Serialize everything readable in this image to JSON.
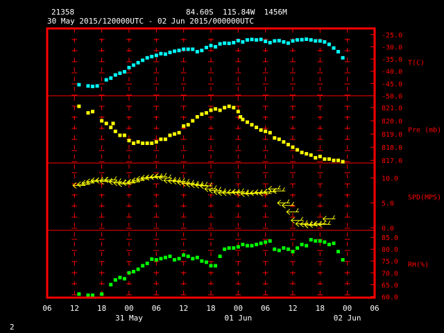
{
  "header": {
    "station_id": "21358",
    "location": "84.60S  115.84W  1456M",
    "time_range": "30 May 2015/120000UTC - 02 Jun 2015/000000UTC"
  },
  "footer": {
    "page_number": "2"
  },
  "chart_data": {
    "type": "scatter",
    "x_unit": "hours since 30 May 2015 00 UTC",
    "x_axis": {
      "range": [
        6,
        78
      ],
      "tick_labels": [
        "06",
        "12",
        "18",
        "00",
        "06",
        "12",
        "18",
        "00",
        "06",
        "12",
        "18",
        "00",
        "06"
      ],
      "date_labels": [
        {
          "label": "31 May",
          "hour": 24
        },
        {
          "label": "01 Jun",
          "hour": 48
        },
        {
          "label": "02 Jun",
          "hour": 72
        }
      ]
    },
    "colors": {
      "frame": "#ff0000",
      "grid": "#ff0000",
      "panel_label": "#ff0000",
      "tick_label": "#ff0000",
      "axis_label": "#ffffff",
      "temperature": "#00ffff",
      "pressure": "#ffff00",
      "wind": "#ffff00",
      "humidity": "#00ff00"
    },
    "panels": [
      {
        "key": "temperature",
        "label": "T(C)",
        "range": [
          -50,
          -22.5
        ],
        "ticks": [
          -25,
          -30,
          -35,
          -40,
          -45,
          -50
        ],
        "tick_labels": [
          "-25.0",
          "-30.0",
          "-35.0",
          "-40.0",
          "-45.0",
          "-50.0"
        ],
        "series": {
          "name": "T(C)",
          "x": [
            13,
            15,
            16,
            17,
            19,
            20,
            21,
            22,
            23,
            24,
            25,
            26,
            27,
            28,
            29,
            30,
            31,
            32,
            33,
            34,
            35,
            36,
            37,
            38,
            39,
            40,
            41,
            42,
            43,
            44,
            45,
            46,
            47,
            48,
            49,
            50,
            51,
            52,
            53,
            54,
            55,
            56,
            57,
            58,
            59,
            60,
            61,
            62,
            63,
            64,
            65,
            66,
            67,
            68,
            69,
            70,
            71
          ],
          "y": [
            -45.5,
            -46,
            -46.2,
            -46,
            -43.5,
            -42.8,
            -41.5,
            -40.8,
            -40.2,
            -38.5,
            -37.5,
            -36.5,
            -35.5,
            -34.5,
            -34,
            -33.5,
            -32.8,
            -33,
            -32.3,
            -31.8,
            -31.5,
            -31,
            -31,
            -31,
            -32,
            -31.5,
            -30.3,
            -29.5,
            -30,
            -28.8,
            -28.5,
            -28.6,
            -28.3,
            -27.5,
            -28,
            -27.2,
            -27,
            -27.2,
            -27,
            -27.8,
            -28.3,
            -27.6,
            -27.5,
            -28,
            -28.5,
            -27.6,
            -27.2,
            -27.1,
            -26.9,
            -27.2,
            -27.6,
            -27.6,
            -28,
            -29,
            -30.5,
            -32,
            -34.5
          ]
        }
      },
      {
        "key": "pressure",
        "label": "Pre (mb)",
        "range": [
          816.8,
          821.9
        ],
        "ticks": [
          817,
          818,
          819,
          820,
          821
        ],
        "tick_labels": [
          "817.0",
          "818.0",
          "819.0",
          "820.0",
          "821.0"
        ],
        "series": {
          "name": "Pre (mb)",
          "x": [
            13,
            15,
            16,
            18,
            19,
            20,
            20.5,
            21,
            22,
            23,
            24,
            25,
            26,
            27,
            28,
            29,
            30,
            31,
            32,
            33,
            34,
            35,
            36,
            37,
            38,
            39,
            40,
            41,
            42,
            43,
            44,
            45,
            46,
            47,
            48,
            48.5,
            49,
            50,
            51,
            52,
            53,
            54,
            55,
            56,
            57,
            58,
            59,
            60,
            61,
            62,
            63,
            64,
            65,
            66,
            67,
            68,
            69,
            70,
            71
          ],
          "y": [
            821.1,
            820.6,
            820.7,
            820,
            819.8,
            819.5,
            819.8,
            819.2,
            818.9,
            818.9,
            818.5,
            818.3,
            818.4,
            818.3,
            818.3,
            818.3,
            818.4,
            818.6,
            818.6,
            818.9,
            819,
            819.1,
            819.6,
            819.7,
            820,
            820.3,
            820.5,
            820.6,
            820.8,
            820.9,
            820.8,
            821,
            821.1,
            821,
            820.7,
            820.3,
            820.1,
            819.9,
            819.7,
            819.5,
            819.3,
            819.2,
            819.1,
            818.7,
            818.6,
            818.4,
            818.2,
            818,
            817.8,
            817.6,
            817.5,
            817.4,
            817.2,
            817.3,
            817.1,
            817.1,
            817,
            817,
            816.9
          ]
        }
      },
      {
        "key": "wind",
        "label": "SPD(MPS)",
        "range": [
          -0.5,
          13
        ],
        "ticks": [
          0,
          5,
          10
        ],
        "tick_labels": [
          "0.0",
          "5.0",
          "10.0"
        ],
        "series": {
          "name": "SPD(MPS)",
          "x": [
            13,
            14,
            15,
            16,
            17,
            18,
            19,
            20,
            21,
            22,
            23,
            24,
            25,
            26,
            27,
            28,
            29,
            30,
            31,
            32,
            33,
            34,
            35,
            36,
            37,
            38,
            39,
            40,
            41,
            42,
            43,
            44,
            45,
            46,
            47,
            48,
            49,
            50,
            51,
            52,
            53,
            54,
            55,
            56,
            57,
            58,
            59,
            60,
            61,
            62,
            63,
            64,
            65,
            66,
            67,
            68
          ],
          "y": [
            8.5,
            8.7,
            9,
            9.3,
            9.5,
            9.5,
            9.3,
            9.6,
            9.2,
            9,
            8.8,
            9,
            9.2,
            9.5,
            9.8,
            10,
            10.1,
            10.2,
            10.3,
            10,
            9.5,
            9.4,
            9.3,
            9.1,
            8.9,
            8.7,
            8.6,
            8.5,
            8.4,
            7.8,
            7.5,
            7.2,
            7,
            7,
            7.1,
            7.2,
            7,
            6.8,
            6.9,
            7,
            7.1,
            6.9,
            7.2,
            7.8,
            7.4,
            5,
            4.5,
            3.2,
            1.5,
            0.8,
            0.7,
            0.5,
            0.6,
            0.8,
            0.7,
            1.8
          ]
        }
      },
      {
        "key": "humidity",
        "label": "RH(%)",
        "range": [
          59.5,
          88
        ],
        "ticks": [
          60,
          65,
          70,
          75,
          80,
          85
        ],
        "tick_labels": [
          "60.0",
          "65.0",
          "70.0",
          "75.0",
          "80.0",
          "85.0"
        ],
        "series": {
          "name": "RH(%)",
          "x": [
            13,
            15,
            16,
            18,
            20,
            21,
            22,
            23,
            24,
            25,
            26,
            27,
            28,
            29,
            30,
            31,
            32,
            33,
            34,
            35,
            36,
            37,
            38,
            39,
            40,
            41,
            42,
            43,
            44,
            45,
            46,
            47,
            48,
            49,
            50,
            51,
            52,
            53,
            54,
            55,
            56,
            57,
            58,
            59,
            60,
            61,
            62,
            63,
            64,
            65,
            66,
            67,
            68,
            69,
            70,
            71
          ],
          "y": [
            61,
            60.5,
            60.5,
            61,
            65,
            67,
            68,
            67.5,
            70,
            70.5,
            71.5,
            73,
            74,
            75.8,
            75.5,
            76,
            76.5,
            77,
            75.5,
            76,
            77.5,
            77,
            76,
            76.5,
            75,
            74.5,
            73,
            73,
            77,
            80,
            80.5,
            80.5,
            81,
            82,
            81.5,
            81.5,
            82,
            82.5,
            83,
            83.5,
            80,
            79.5,
            80.5,
            80,
            79,
            80.5,
            82,
            81.5,
            84,
            83.5,
            83.5,
            83,
            82,
            82.5,
            79,
            75.5
          ]
        }
      }
    ]
  }
}
